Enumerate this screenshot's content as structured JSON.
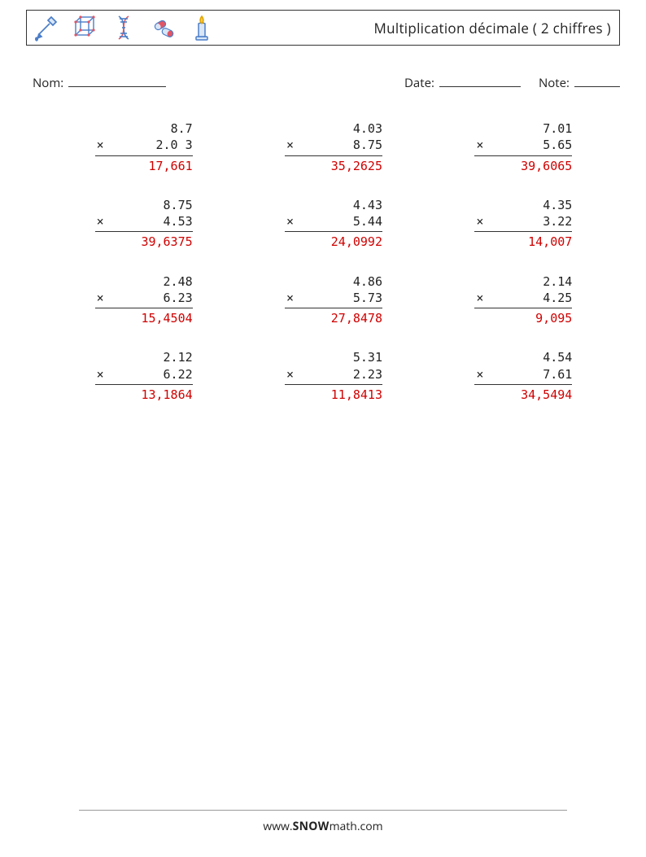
{
  "header": {
    "title": "Multiplication décimale ( 2 chiffres )"
  },
  "info": {
    "name_label": "Nom:",
    "date_label": "Date:",
    "note_label": "Note:"
  },
  "problems": [
    {
      "a": "8.7",
      "b": "2.0 3",
      "ans": "17,661"
    },
    {
      "a": "4.03",
      "b": "8.75",
      "ans": "35,2625"
    },
    {
      "a": "7.01",
      "b": "5.65",
      "ans": "39,6065"
    },
    {
      "a": "8.75",
      "b": "4.53",
      "ans": "39,6375"
    },
    {
      "a": "4.43",
      "b": "5.44",
      "ans": "24,0992"
    },
    {
      "a": "4.35",
      "b": "3.22",
      "ans": "14,007"
    },
    {
      "a": "2.48",
      "b": "6.23",
      "ans": "15,4504"
    },
    {
      "a": "4.86",
      "b": "5.73",
      "ans": "27,8478"
    },
    {
      "a": "2.14",
      "b": "4.25",
      "ans": "9,095"
    },
    {
      "a": "2.12",
      "b": "6.22",
      "ans": "13,1864"
    },
    {
      "a": "5.31",
      "b": "2.23",
      "ans": "11,8413"
    },
    {
      "a": "4.54",
      "b": "7.61",
      "ans": "34,5494"
    }
  ],
  "footer": {
    "prefix": "www.",
    "brand_caps": "SNOW",
    "brand_rest": "math.com"
  },
  "operator": "×",
  "colors": {
    "answer": "#d00000",
    "icon_blue": "#4b7ec8",
    "icon_red": "#e25563",
    "icon_light": "#d9e6f7",
    "border": "#333333"
  }
}
